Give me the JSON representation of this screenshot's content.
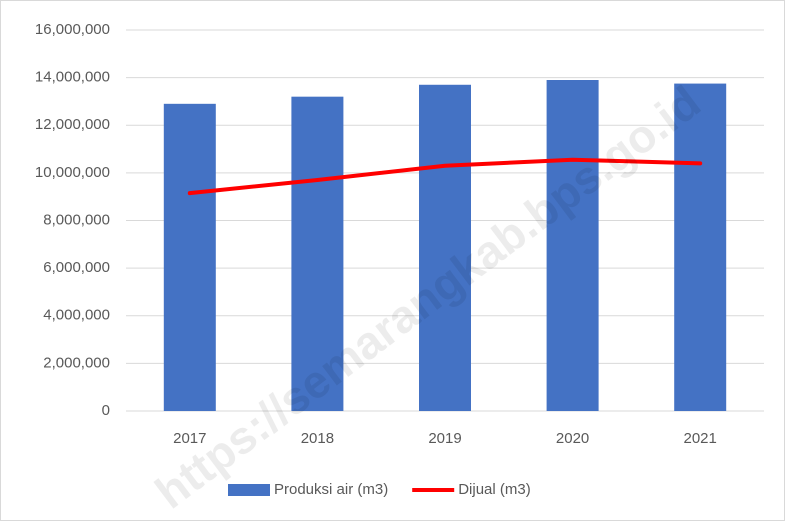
{
  "chart_data": {
    "type": "bar",
    "watermark": "https://semarangkab.bps.go.id",
    "categories": [
      "2017",
      "2018",
      "2019",
      "2020",
      "2021"
    ],
    "series": [
      {
        "name": "Produksi air (m3)",
        "type": "bar",
        "color": "#4472c4",
        "values": [
          12900000,
          13200000,
          13700000,
          13900000,
          13750000
        ]
      },
      {
        "name": "Dijual (m3)",
        "type": "line",
        "color": "#ff0000",
        "values": [
          9150000,
          9700000,
          10300000,
          10550000,
          10400000
        ]
      }
    ],
    "ylim": [
      0,
      16000000
    ],
    "yticks": [
      0,
      {
        "value": 2000000,
        "label": "2,000,000"
      },
      {
        "value": 4000000,
        "label": "4,000,000"
      },
      {
        "value": 6000000,
        "label": "6,000,000"
      },
      {
        "value": 8000000,
        "label": "8,000,000"
      },
      {
        "value": 10000000,
        "label": "10,000,000"
      },
      {
        "value": 12000000,
        "label": "12,000,000"
      },
      {
        "value": 14000000,
        "label": "14,000,000"
      },
      {
        "value": 16000000,
        "label": "16,000,000"
      }
    ],
    "grid": true,
    "legend": "bottom"
  }
}
